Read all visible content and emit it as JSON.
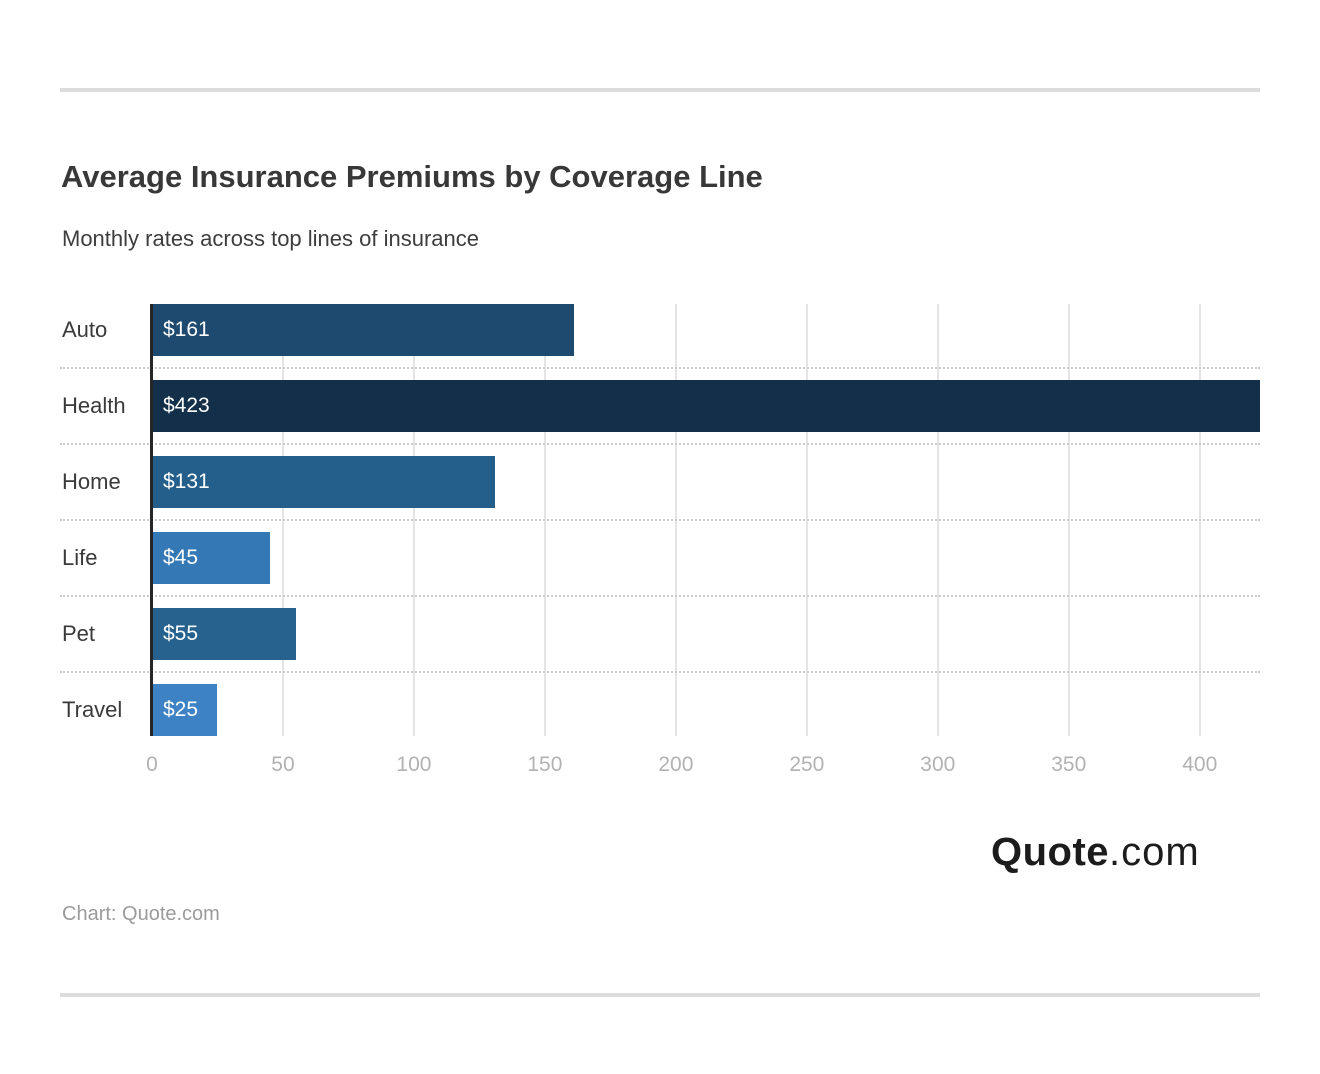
{
  "chart_data": {
    "type": "bar",
    "orientation": "horizontal",
    "title": "Average Insurance Premiums by Coverage Line",
    "subtitle": "Monthly rates across top lines of insurance",
    "categories": [
      "Auto",
      "Health",
      "Home",
      "Life",
      "Pet",
      "Travel"
    ],
    "values": [
      161,
      423,
      131,
      45,
      55,
      25
    ],
    "value_labels": [
      "$161",
      "$423",
      "$131",
      "$45",
      "$55",
      "$25"
    ],
    "bar_colors": [
      "#1E4A70",
      "#142F4A",
      "#245F8C",
      "#3478B5",
      "#27628F",
      "#3C82C4"
    ],
    "value_prefix": "$",
    "x_ticks": [
      0,
      50,
      100,
      150,
      200,
      250,
      300,
      350,
      400
    ],
    "xlim": [
      0,
      423
    ],
    "xlabel": "",
    "ylabel": "",
    "grid": "vertical-light",
    "legend": "none",
    "bar_label_color": "#FFFFFF"
  },
  "footer": {
    "source": "Chart: Quote.com",
    "logo_bold": "Quote",
    "logo_light": ".com"
  },
  "theme": {
    "background": "#FFFFFF",
    "title_color": "#383838",
    "subtitle_color": "#3D3D3D",
    "category_label_color": "#3A3A3A",
    "tick_label_color": "#B2B2B2",
    "gridline_color": "#E4E4E4",
    "separator_color": "#CBCBCB",
    "axis_line_color": "#262626",
    "divider_color": "#DCDCDC",
    "logo_color": "#1C1C1C",
    "source_color": "#9B9B9B"
  }
}
